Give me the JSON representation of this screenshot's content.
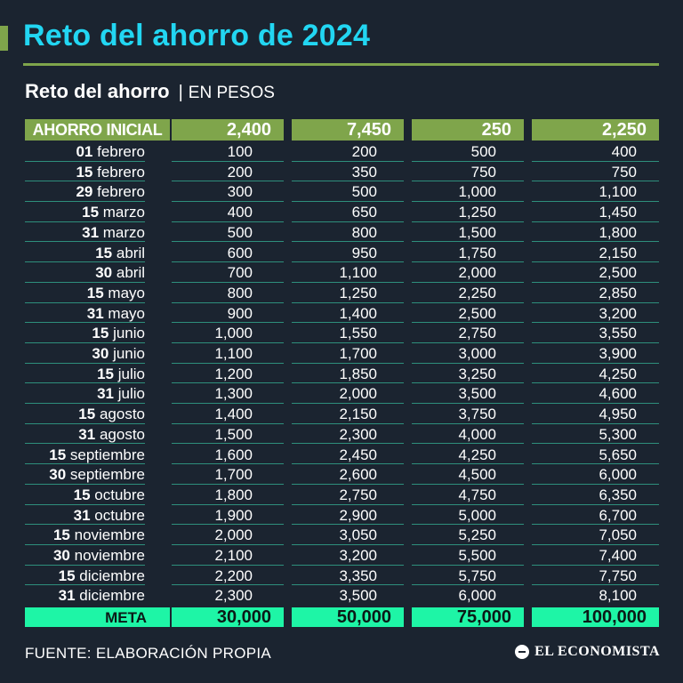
{
  "title": "Reto del ahorro de 2024",
  "subtitle": {
    "main": "Reto del ahorro",
    "separator": "|",
    "unit": "EN PESOS"
  },
  "table": {
    "initial_label": "AHORRO INICIAL",
    "initial": [
      "2,400",
      "7,450",
      "250",
      "2,250"
    ],
    "rows": [
      {
        "day": "01",
        "month": "febrero",
        "values": [
          "100",
          "200",
          "500",
          "400"
        ]
      },
      {
        "day": "15",
        "month": "febrero",
        "values": [
          "200",
          "350",
          "750",
          "750"
        ]
      },
      {
        "day": "29",
        "month": "febrero",
        "values": [
          "300",
          "500",
          "1,000",
          "1,100"
        ]
      },
      {
        "day": "15",
        "month": "marzo",
        "values": [
          "400",
          "650",
          "1,250",
          "1,450"
        ]
      },
      {
        "day": "31",
        "month": "marzo",
        "values": [
          "500",
          "800",
          "1,500",
          "1,800"
        ]
      },
      {
        "day": "15",
        "month": "abril",
        "values": [
          "600",
          "950",
          "1,750",
          "2,150"
        ]
      },
      {
        "day": "30",
        "month": "abril",
        "values": [
          "700",
          "1,100",
          "2,000",
          "2,500"
        ]
      },
      {
        "day": "15",
        "month": "mayo",
        "values": [
          "800",
          "1,250",
          "2,250",
          "2,850"
        ]
      },
      {
        "day": "31",
        "month": "mayo",
        "values": [
          "900",
          "1,400",
          "2,500",
          "3,200"
        ]
      },
      {
        "day": "15",
        "month": "junio",
        "values": [
          "1,000",
          "1,550",
          "2,750",
          "3,550"
        ]
      },
      {
        "day": "30",
        "month": "junio",
        "values": [
          "1,100",
          "1,700",
          "3,000",
          "3,900"
        ]
      },
      {
        "day": "15",
        "month": "julio",
        "values": [
          "1,200",
          "1,850",
          "3,250",
          "4,250"
        ]
      },
      {
        "day": "31",
        "month": "julio",
        "values": [
          "1,300",
          "2,000",
          "3,500",
          "4,600"
        ]
      },
      {
        "day": "15",
        "month": "agosto",
        "values": [
          "1,400",
          "2,150",
          "3,750",
          "4,950"
        ]
      },
      {
        "day": "31",
        "month": "agosto",
        "values": [
          "1,500",
          "2,300",
          "4,000",
          "5,300"
        ]
      },
      {
        "day": "15",
        "month": "septiembre",
        "values": [
          "1,600",
          "2,450",
          "4,250",
          "5,650"
        ]
      },
      {
        "day": "30",
        "month": "septiembre",
        "values": [
          "1,700",
          "2,600",
          "4,500",
          "6,000"
        ]
      },
      {
        "day": "15",
        "month": "octubre",
        "values": [
          "1,800",
          "2,750",
          "4,750",
          "6,350"
        ]
      },
      {
        "day": "31",
        "month": "octubre",
        "values": [
          "1,900",
          "2,900",
          "5,000",
          "6,700"
        ]
      },
      {
        "day": "15",
        "month": "noviembre",
        "values": [
          "2,000",
          "3,050",
          "5,250",
          "7,050"
        ]
      },
      {
        "day": "30",
        "month": "noviembre",
        "values": [
          "2,100",
          "3,200",
          "5,500",
          "7,400"
        ]
      },
      {
        "day": "15",
        "month": "diciembre",
        "values": [
          "2,200",
          "3,350",
          "5,750",
          "7,750"
        ]
      },
      {
        "day": "31",
        "month": "diciembre",
        "values": [
          "2,300",
          "3,500",
          "6,000",
          "8,100"
        ]
      }
    ],
    "goal_label": "META",
    "goals": [
      "30,000",
      "50,000",
      "75,000",
      "100,000"
    ]
  },
  "footer": {
    "source": "FUENTE: ELABORACIÓN PROPIA",
    "brand": "EL ECONOMISTA"
  },
  "colors": {
    "background": "#1b2430",
    "title": "#22d6f2",
    "header_green": "#7fa54b",
    "goal_green": "#1ef5a6",
    "row_rule": "#2e8f7c"
  }
}
